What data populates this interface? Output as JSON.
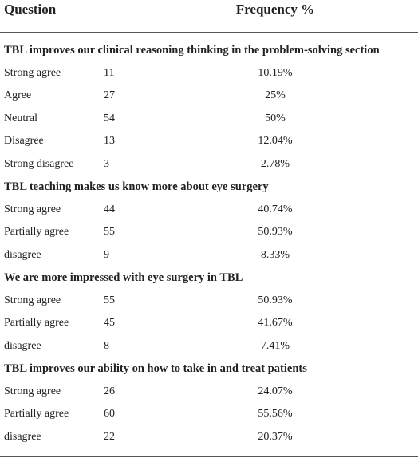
{
  "header": [
    "Question",
    "Frequency %"
  ],
  "sections": [
    {
      "title": "TBL improves our clinical reasoning thinking in the problem-solving section",
      "rows": [
        [
          "Strong agree",
          "11",
          "10.19%"
        ],
        [
          "Agree",
          "27",
          "25%"
        ],
        [
          "Neutral",
          "54",
          "50%"
        ],
        [
          "Disagree",
          "13",
          "12.04%"
        ],
        [
          "Strong disagree",
          "3",
          "2.78%"
        ]
      ]
    },
    {
      "title": "TBL teaching makes us know more about eye surgery",
      "rows": [
        [
          "Strong agree",
          "44",
          "40.74%"
        ],
        [
          "Partially agree",
          "55",
          "50.93%"
        ],
        [
          "disagree",
          "9",
          "8.33%"
        ]
      ]
    },
    {
      "title": "We are more impressed with eye surgery in TBL",
      "rows": [
        [
          "Strong agree",
          "55",
          "50.93%"
        ],
        [
          "Partially agree",
          "45",
          "41.67%"
        ],
        [
          "disagree",
          "8",
          "7.41%"
        ]
      ]
    },
    {
      "title": "TBL improves our ability on how to take in and treat patients",
      "rows": [
        [
          "Strong agree",
          "26",
          "24.07%"
        ],
        [
          "Partially agree",
          "60",
          "55.56%"
        ],
        [
          "disagree",
          "22",
          "20.37%"
        ]
      ]
    }
  ]
}
